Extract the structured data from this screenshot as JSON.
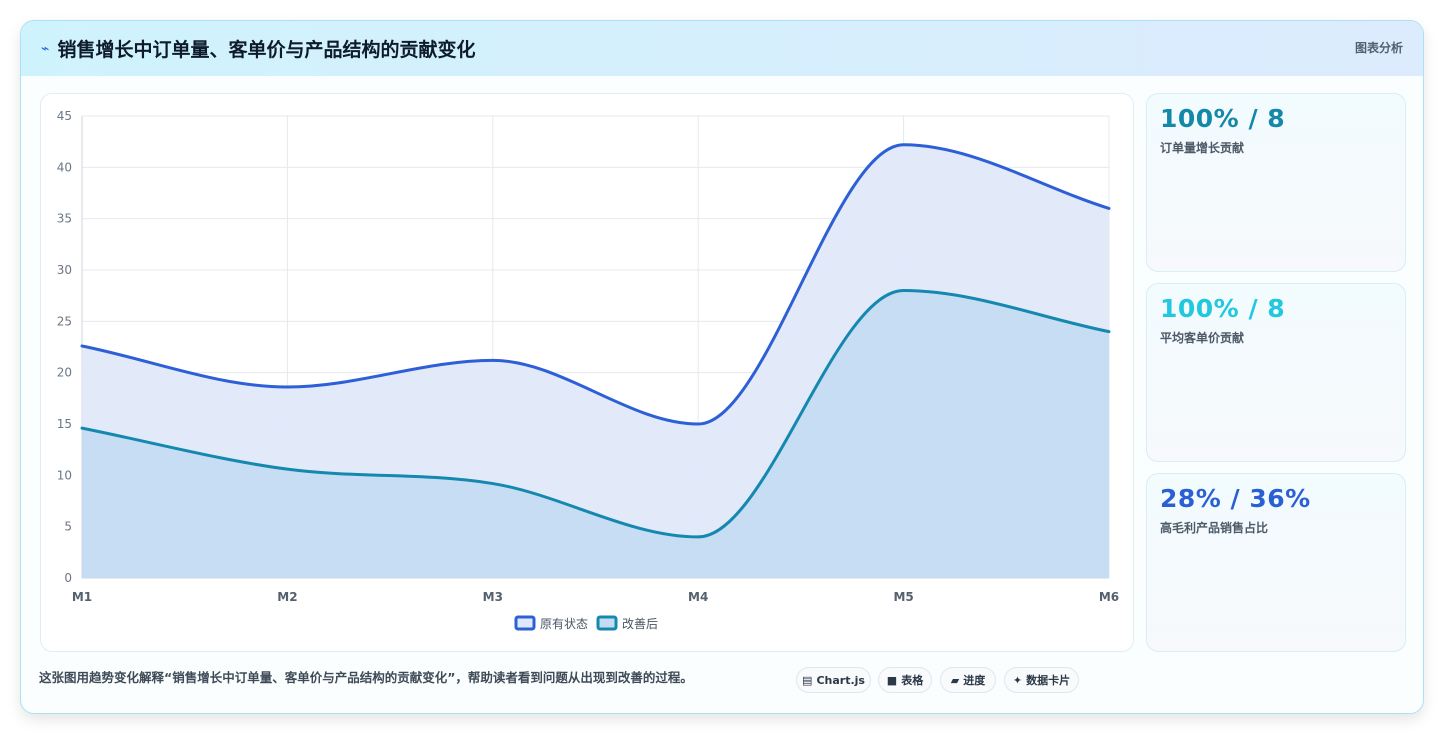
{
  "header": {
    "icon": "trend-icon",
    "title": "销售增长中订单量、客单价与产品结构的贡献变化",
    "right_label": "图表分析"
  },
  "chart_data": {
    "type": "area",
    "categories": [
      "M1",
      "M2",
      "M3",
      "M4",
      "M5",
      "M6"
    ],
    "ylim": [
      0,
      45
    ],
    "yticks": [
      0,
      5,
      10,
      15,
      20,
      25,
      30,
      35,
      40,
      45
    ],
    "grid": true,
    "legend_position": "bottom",
    "series": [
      {
        "name": "原有状态",
        "values": [
          22.6,
          18.6,
          21.2,
          15.0,
          42.2,
          36.0
        ],
        "color": "#2d5fd6",
        "fill": "#dfe8fa"
      },
      {
        "name": "改善后",
        "values": [
          14.6,
          10.6,
          9.2,
          4.0,
          28.0,
          24.0
        ],
        "color": "#1588b0",
        "fill": "#c3dcf2"
      }
    ]
  },
  "stats": [
    {
      "value": "100% / 8",
      "label": "订单量增长贡献",
      "color": "#1488a8"
    },
    {
      "value": "100% / 8",
      "label": "平均客单价贡献",
      "color": "#22c7e0"
    },
    {
      "value": "28% / 36%",
      "label": "高毛利产品销售占比",
      "color": "#2b5fd4"
    }
  ],
  "footer": {
    "description": "这张图用趋势变化解释“销售增长中订单量、客单价与产品结构的贡献变化”，帮助读者看到问题从出现到改善的过程。",
    "chips": [
      {
        "icon": "chart-icon",
        "glyph": "▤",
        "label": "Chart.js"
      },
      {
        "icon": "table-icon",
        "glyph": "■",
        "label": "表格"
      },
      {
        "icon": "progress-icon",
        "glyph": "▰",
        "label": "进度"
      },
      {
        "icon": "sparkle-icon",
        "glyph": "✦",
        "label": "数据卡片"
      }
    ]
  }
}
